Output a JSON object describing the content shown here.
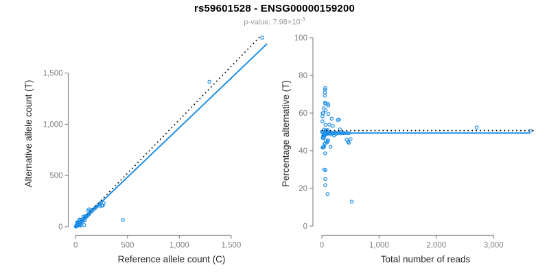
{
  "header": {
    "title": "rs59601528 - ENSG00000159200",
    "pvalue_text": "p-value: 7.98×10",
    "pvalue_exponent": "-3"
  },
  "colors": {
    "point": "#1E8FE8",
    "fit_line": "#1E8FE8",
    "reference_line": "#000000",
    "axis": "#8a8a8a",
    "tick_label": "#7d7d7d",
    "axis_title": "#262626",
    "title": "#000000",
    "subtitle": "#9b9b9b"
  },
  "chart_data": [
    {
      "type": "scatter",
      "name": "allele-counts-scatter",
      "xlabel": "Reference allele count (C)",
      "ylabel": "Alternative allele count (T)",
      "xlim": [
        0,
        1870
      ],
      "ylim": [
        0,
        1900
      ],
      "xticks": {
        "values": [
          0,
          500,
          1000,
          1500
        ],
        "labels": [
          "0",
          "500",
          "1,000",
          "1,500"
        ]
      },
      "yticks": {
        "values": [
          0,
          500,
          1000,
          1500
        ],
        "labels": [
          "0",
          "500",
          "1,000",
          "1,500"
        ]
      },
      "points": [
        [
          2,
          2
        ],
        [
          3,
          3
        ],
        [
          4,
          5
        ],
        [
          5,
          5
        ],
        [
          5,
          7
        ],
        [
          6,
          6
        ],
        [
          6,
          9
        ],
        [
          7,
          5
        ],
        [
          8,
          7
        ],
        [
          8,
          12
        ],
        [
          9,
          8
        ],
        [
          10,
          10
        ],
        [
          10,
          15
        ],
        [
          11,
          11
        ],
        [
          12,
          11
        ],
        [
          12,
          20
        ],
        [
          13,
          12
        ],
        [
          14,
          10
        ],
        [
          15,
          14
        ],
        [
          16,
          36
        ],
        [
          16,
          39
        ],
        [
          16,
          42
        ],
        [
          16,
          44
        ],
        [
          18,
          13
        ],
        [
          18,
          17
        ],
        [
          19,
          36
        ],
        [
          20,
          21
        ],
        [
          21,
          39
        ],
        [
          22,
          16
        ],
        [
          22,
          20
        ],
        [
          25,
          24
        ],
        [
          25,
          40
        ],
        [
          26,
          20
        ],
        [
          28,
          12
        ],
        [
          28,
          27
        ],
        [
          30,
          29
        ],
        [
          30,
          35
        ],
        [
          32,
          25
        ],
        [
          33,
          34
        ],
        [
          35,
          22
        ],
        [
          35,
          33
        ],
        [
          36,
          30
        ],
        [
          38,
          37
        ],
        [
          38,
          70
        ],
        [
          40,
          41
        ],
        [
          40,
          71
        ],
        [
          42,
          40
        ],
        [
          45,
          15
        ],
        [
          45,
          19
        ],
        [
          45,
          44
        ],
        [
          45,
          66
        ],
        [
          47,
          13
        ],
        [
          48,
          47
        ],
        [
          50,
          40
        ],
        [
          50,
          52
        ],
        [
          55,
          45
        ],
        [
          55,
          53
        ],
        [
          60,
          50
        ],
        [
          60,
          59
        ],
        [
          61,
          71
        ],
        [
          65,
          64
        ],
        [
          70,
          68
        ],
        [
          74,
          98
        ],
        [
          75,
          74
        ],
        [
          78,
          74
        ],
        [
          80,
          78
        ],
        [
          83,
          17
        ],
        [
          88,
          64
        ],
        [
          90,
          88
        ],
        [
          90,
          102
        ],
        [
          100,
          97
        ],
        [
          110,
          102
        ],
        [
          110,
          108
        ],
        [
          120,
          118
        ],
        [
          122,
          157
        ],
        [
          127,
          121
        ],
        [
          130,
          169
        ],
        [
          135,
          132
        ],
        [
          150,
          147
        ],
        [
          153,
          161
        ],
        [
          165,
          160
        ],
        [
          180,
          176
        ],
        [
          190,
          185
        ],
        [
          200,
          195
        ],
        [
          220,
          214
        ],
        [
          235,
          199
        ],
        [
          240,
          233
        ],
        [
          255,
          206
        ],
        [
          263,
          208
        ],
        [
          270,
          231
        ],
        [
          455,
          68
        ],
        [
          1290,
          1415
        ],
        [
          1800,
          1845
        ]
      ],
      "lines": [
        {
          "style": "dotted",
          "label": "identity-reference",
          "x1": 0,
          "y1": 0,
          "x2": 1793,
          "y2": 1872
        },
        {
          "style": "solid",
          "label": "fit",
          "x1": 0,
          "y1": 0,
          "x2": 1846,
          "y2": 1786
        }
      ]
    },
    {
      "type": "scatter",
      "name": "percentage-vs-reads-scatter",
      "xlabel": "Total number of reads",
      "ylabel": "Percentage alternative (T)",
      "xlim": [
        0,
        3712
      ],
      "ylim": [
        0,
        100
      ],
      "xticks": {
        "values": [
          0,
          1000,
          2000,
          3000
        ],
        "labels": [
          "0",
          "1,000",
          "2,000",
          "3,000"
        ]
      },
      "yticks": {
        "values": [
          0,
          20,
          40,
          60,
          80,
          100
        ],
        "labels": [
          "0",
          "20",
          "40",
          "60",
          "80",
          "100"
        ]
      },
      "points": [
        [
          4,
          50
        ],
        [
          6,
          50
        ],
        [
          9,
          55.6
        ],
        [
          10,
          50
        ],
        [
          12,
          58.3
        ],
        [
          12,
          50
        ],
        [
          15,
          60
        ],
        [
          12,
          41.7
        ],
        [
          15,
          46.7
        ],
        [
          20,
          60
        ],
        [
          17,
          47.1
        ],
        [
          20,
          50
        ],
        [
          25,
          60
        ],
        [
          22,
          50
        ],
        [
          23,
          47.8
        ],
        [
          32,
          62.5
        ],
        [
          25,
          48
        ],
        [
          24,
          41.7
        ],
        [
          29,
          48.3
        ],
        [
          52,
          69.2
        ],
        [
          55,
          70.9
        ],
        [
          58,
          72.4
        ],
        [
          60,
          73.3
        ],
        [
          31,
          41.9
        ],
        [
          35,
          48.6
        ],
        [
          55,
          65.5
        ],
        [
          41,
          51.2
        ],
        [
          60,
          65
        ],
        [
          38,
          42.1
        ],
        [
          42,
          47.6
        ],
        [
          49,
          49
        ],
        [
          65,
          61.5
        ],
        [
          46,
          43.5
        ],
        [
          40,
          30
        ],
        [
          55,
          49.1
        ],
        [
          59,
          49.2
        ],
        [
          65,
          53.8
        ],
        [
          57,
          43.9
        ],
        [
          67,
          50.7
        ],
        [
          57,
          38.6
        ],
        [
          68,
          48.5
        ],
        [
          66,
          45.5
        ],
        [
          75,
          49.3
        ],
        [
          108,
          64.8
        ],
        [
          81,
          50.6
        ],
        [
          111,
          64
        ],
        [
          82,
          48.8
        ],
        [
          60,
          25
        ],
        [
          64,
          29.7
        ],
        [
          89,
          49.4
        ],
        [
          111,
          59.5
        ],
        [
          60,
          21.7
        ],
        [
          95,
          49.5
        ],
        [
          90,
          44.4
        ],
        [
          102,
          51
        ],
        [
          100,
          45
        ],
        [
          108,
          49.1
        ],
        [
          110,
          45.5
        ],
        [
          119,
          49.6
        ],
        [
          132,
          53.8
        ],
        [
          129,
          49.6
        ],
        [
          138,
          49.3
        ],
        [
          172,
          57
        ],
        [
          149,
          49.7
        ],
        [
          152,
          48.7
        ],
        [
          158,
          49.4
        ],
        [
          100,
          17
        ],
        [
          152,
          42.1
        ],
        [
          178,
          49.4
        ],
        [
          192,
          53.1
        ],
        [
          197,
          49.2
        ],
        [
          212,
          48.1
        ],
        [
          218,
          49.5
        ],
        [
          238,
          49.6
        ],
        [
          279,
          56.3
        ],
        [
          248,
          48.8
        ],
        [
          299,
          56.5
        ],
        [
          267,
          49.4
        ],
        [
          297,
          49.5
        ],
        [
          314,
          51.3
        ],
        [
          325,
          49.2
        ],
        [
          356,
          49.4
        ],
        [
          375,
          49.3
        ],
        [
          395,
          49.4
        ],
        [
          434,
          49.3
        ],
        [
          434,
          45.9
        ],
        [
          473,
          49.3
        ],
        [
          461,
          44.7
        ],
        [
          471,
          44.2
        ],
        [
          501,
          46.1
        ],
        [
          523,
          13
        ],
        [
          2705,
          52.3
        ],
        [
          3645,
          50.6
        ]
      ],
      "lines": [
        {
          "style": "dotted",
          "label": "fifty-percent-reference",
          "x1": 0,
          "y1": 50.7,
          "x2": 3712,
          "y2": 50.7
        },
        {
          "style": "solid",
          "label": "fit",
          "x1": 0,
          "y1": 49.4,
          "x2": 3640,
          "y2": 49.4
        }
      ]
    }
  ]
}
